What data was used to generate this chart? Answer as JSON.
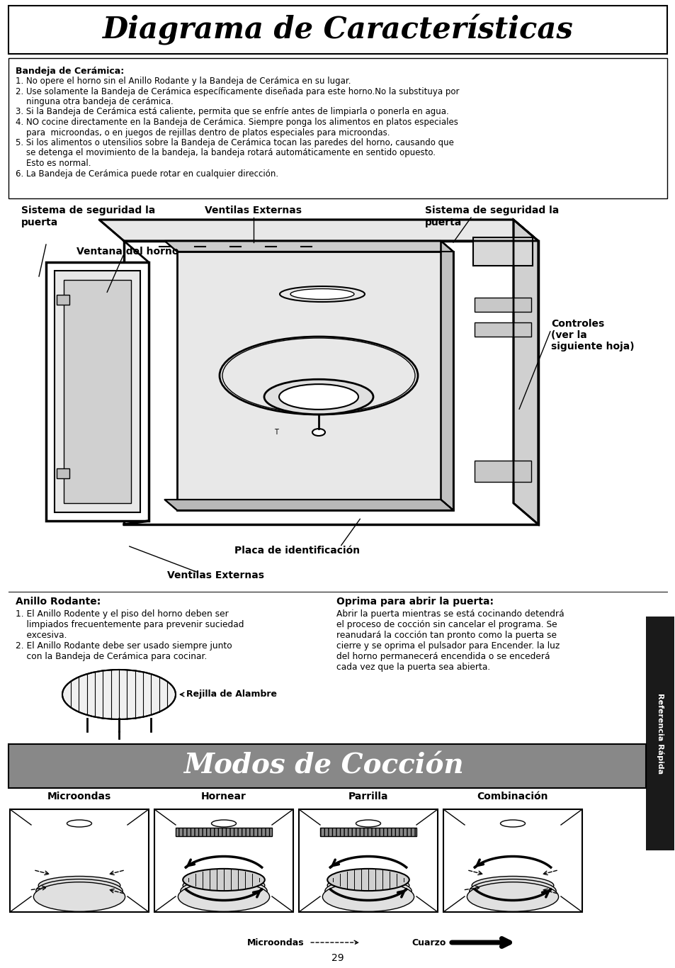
{
  "title": "Diagrama de Características",
  "title2": "Modos de Cocción",
  "bg_color": "#ffffff",
  "bandeja_title": "Bandeja de Cerámica:",
  "bandeja_lines": [
    "1. No opere el horno sin el Anillo Rodante y la Bandeja de Cerámica en su lugar.",
    "2. Use solamente la Bandeja de Cerámica específicamente diseñada para este horno.No la substituya por",
    "    ninguna otra bandeja de cerámica.",
    "3. Si la Bandeja de Cerámica está caliente, permita que se enfríe antes de limpiarla o ponerla en agua.",
    "4. NO cocine directamente en la Bandeja de Cerámica. Siempre ponga los alimentos en platos especiales",
    "    para  microondas, o en juegos de rejillas dentro de platos especiales para microondas.",
    "5. Si los alimentos o utensilios sobre la Bandeja de Cerámica tocan las paredes del horno, causando que",
    "    se detenga el movimiento de la bandeja, la bandeja rotará automáticamente en sentido opuesto.",
    "    Esto es normal.",
    "6. La Bandeja de Cerámica puede rotar en cualquier dirección."
  ],
  "label_seg_izq_1": "Sistema de seguridad la",
  "label_seg_izq_2": "puerta",
  "label_ventilas_top": "Ventilas Externas",
  "label_seg_der_1": "Sistema de seguridad la",
  "label_seg_der_2": "puerta",
  "label_ventana": "Ventana del horno",
  "label_controles": "Controles\n(ver la\nsiguiente hoja)",
  "label_placa": "Placa de identificación",
  "label_ventilas_bot": "Ventilas Externas",
  "anillo_title": "Anillo Rodante:",
  "anillo_lines": [
    "1. El Anillo Rodente y el piso del horno deben ser",
    "    limpiados frecuentemente para prevenir suciedad",
    "    excesiva.",
    "2. El Anillo Rodante debe ser usado siempre junto",
    "    con la Bandeja de Cerámica para cocinar."
  ],
  "rejilla_label": "Rejilla de Alambre",
  "oprima_title": "Oprima para abrir la puerta:",
  "oprima_lines": [
    "Abrir la puerta mientras se está cocinando detendrá",
    "el proceso de cocción sin cancelar el programa. Se",
    "reanudará la cocción tan pronto como la puerta se",
    "cierre y se oprima el pulsador para Encender. la luz",
    "del horno permanecerá encendida o se encederá",
    "cada vez que la puerta sea abierta."
  ],
  "coccion_labels": [
    "Microondas",
    "Hornear",
    "Parrilla",
    "Combinación"
  ],
  "legend_microondas": "Microondas",
  "legend_cuarzo": "Cuarzo",
  "page_number": "29",
  "ref_rapida": "Referencia Rápida",
  "modos_bg": "#888888",
  "ref_tab_bg": "#1a1a1a"
}
